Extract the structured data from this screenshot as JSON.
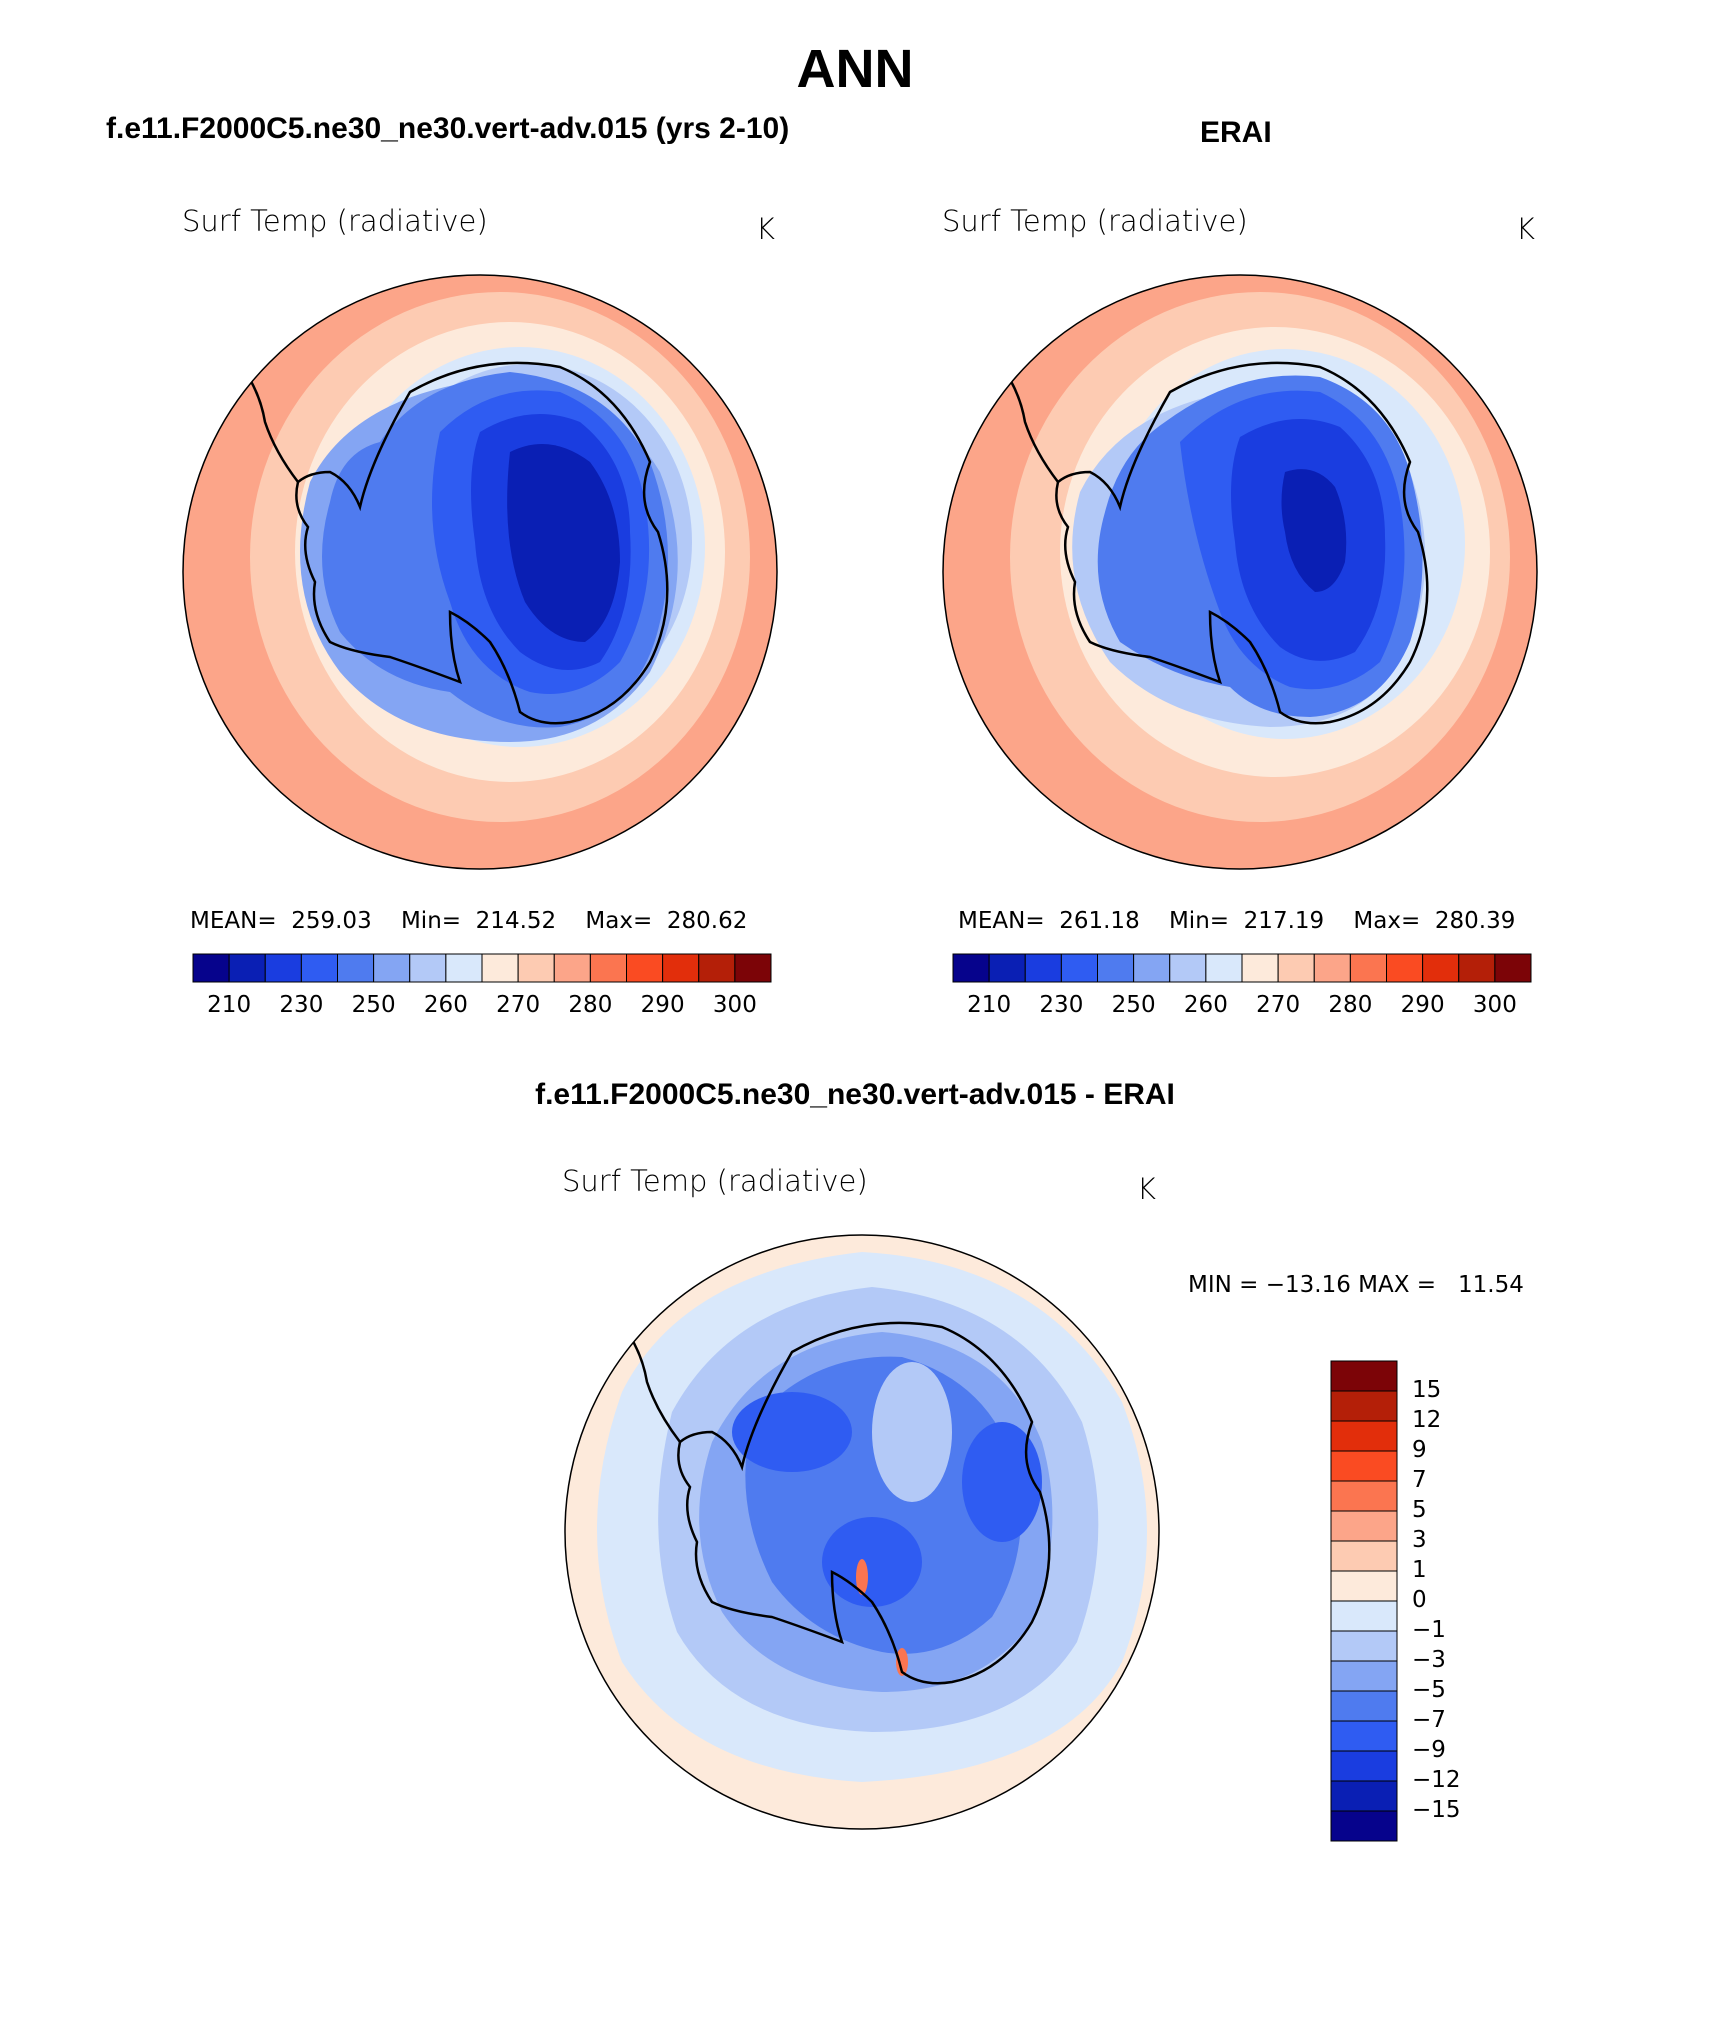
{
  "page_title": "ANN",
  "top_left": {
    "case_title": "f.e11.F2000C5.ne30_ne30.vert-adv.015 (yrs 2-10)",
    "variable": "Surf Temp (radiative)",
    "units": "K",
    "stats": {
      "mean_label": "MEAN=",
      "mean": "259.03",
      "min_label": "Min=",
      "min": "214.52",
      "max_label": "Max=",
      "max": "280.62"
    }
  },
  "top_right": {
    "case_title": "ERAI",
    "variable": "Surf Temp (radiative)",
    "units": "K",
    "stats": {
      "mean_label": "MEAN=",
      "mean": "261.18",
      "min_label": "Min=",
      "min": "217.19",
      "max_label": "Max=",
      "max": "280.39"
    }
  },
  "bottom": {
    "case_title": "f.e11.F2000C5.ne30_ne30.vert-adv.015 - ERAI",
    "variable": "Surf Temp (radiative)",
    "units": "K",
    "minmax": "MIN = −13.16 MAX =   11.54"
  },
  "abs_colorbar": {
    "colors": [
      "#06038c",
      "#0a1fb4",
      "#1a3de0",
      "#2f5cf2",
      "#4f7bef",
      "#84a5f3",
      "#b3c9f7",
      "#d9e8fb",
      "#fdeadb",
      "#fdcbb2",
      "#fca589",
      "#fb7550",
      "#fa4b22",
      "#e22e0b",
      "#b41f08",
      "#7c0407"
    ],
    "tick_labels": [
      "210",
      "230",
      "250",
      "260",
      "270",
      "280",
      "290",
      "300"
    ]
  },
  "diff_colorbar": {
    "colors": [
      "#7c0407",
      "#b41f08",
      "#e22e0b",
      "#fa4b22",
      "#fb7550",
      "#fca589",
      "#fdcbb2",
      "#fdeadb",
      "#d9e8fb",
      "#b3c9f7",
      "#84a5f3",
      "#4f7bef",
      "#2f5cf2",
      "#1a3de0",
      "#0a1fb4",
      "#06038c"
    ],
    "tick_labels": [
      "15",
      "12",
      "9",
      "7",
      "5",
      "3",
      "1",
      "0",
      "−1",
      "−3",
      "−5",
      "−7",
      "−9",
      "−12",
      "−15"
    ]
  },
  "map_colors": {
    "ocean_warm": "#fca589",
    "ocean_mid": "#fdcbb2",
    "ocean_cool": "#fdeadb",
    "ice_edge": "#d9e8fb",
    "ice_light": "#b3c9f7",
    "ice_mid": "#84a5f3",
    "land_edge": "#4f7bef",
    "land_mid": "#2f5cf2",
    "land_inner": "#1a3de0",
    "land_core": "#0a1fb4",
    "land_deep": "#06038c",
    "diff_bg": "#fdeadb",
    "diff_ring": "#d9e8fb",
    "diff_ring2": "#b3c9f7",
    "diff_land": "#84a5f3",
    "diff_land2": "#4f7bef",
    "diff_cold": "#2f5cf2",
    "diff_warm_spot": "#fb7550"
  }
}
